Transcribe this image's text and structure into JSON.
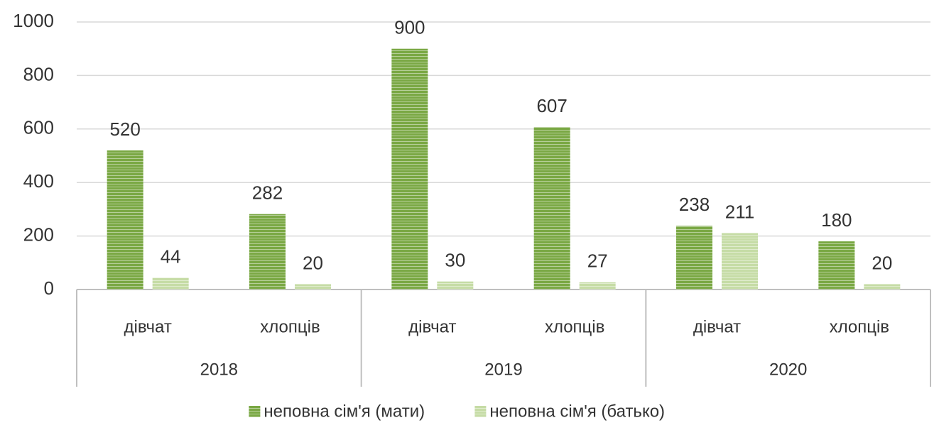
{
  "chart_data": {
    "type": "bar",
    "categories": [
      "дівчат",
      "хлопців",
      "дівчат",
      "хлопців",
      "дівчат",
      "хлопців"
    ],
    "category_groups": [
      "2018",
      "2019",
      "2020"
    ],
    "series": [
      {
        "name": "неповна сім'я (мати)",
        "color": "#7aa844",
        "values": [
          520,
          282,
          900,
          607,
          238,
          180
        ]
      },
      {
        "name": "неповна сім'я (батько)",
        "color": "#c6dca6",
        "values": [
          44,
          20,
          30,
          27,
          211,
          20
        ]
      }
    ],
    "ylim": [
      0,
      1000
    ],
    "yticks": [
      0,
      200,
      400,
      600,
      800,
      1000
    ],
    "grid": true,
    "legend": "bottom"
  }
}
